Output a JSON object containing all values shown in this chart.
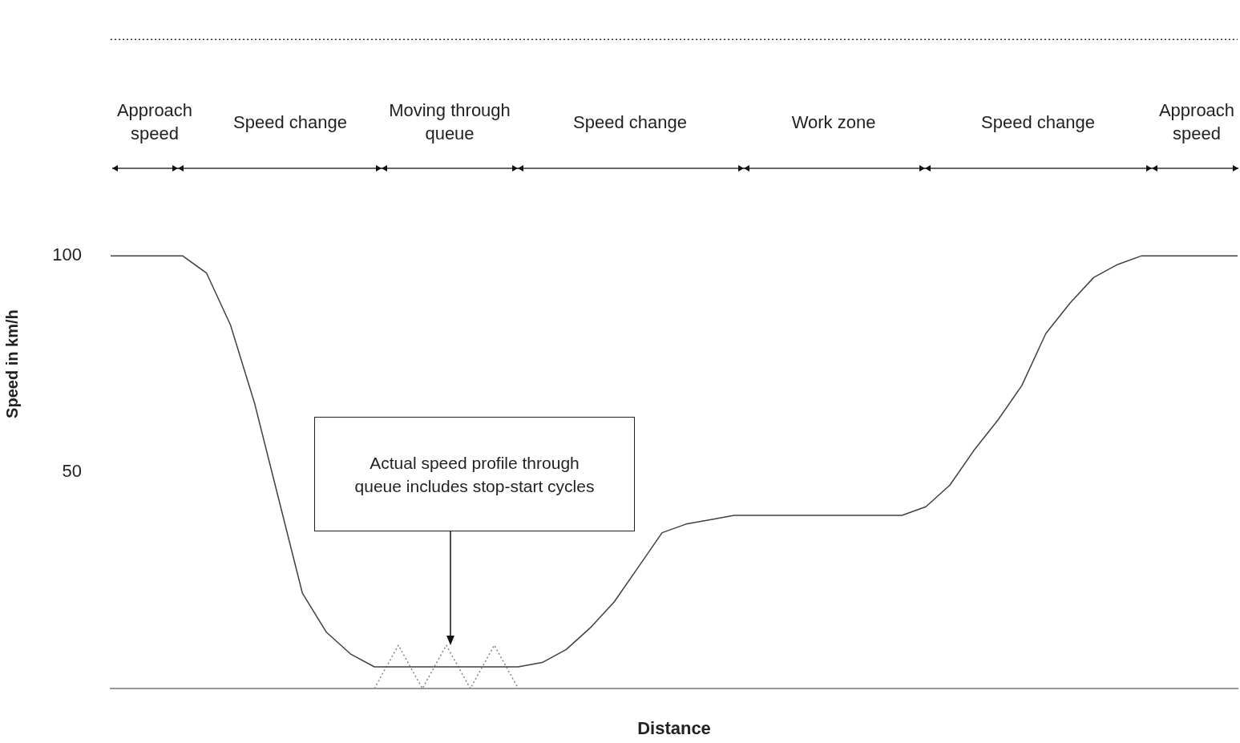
{
  "chart_data": {
    "type": "line",
    "xlabel": "Distance",
    "ylabel": "Speed in km/h",
    "categories": [
      null,
      null,
      null,
      null,
      null,
      null,
      null,
      null,
      null,
      null,
      null,
      null,
      null,
      null,
      null,
      null,
      null,
      null,
      null,
      null,
      null,
      null,
      null,
      null,
      null,
      null,
      null,
      null,
      null,
      null,
      null,
      null,
      null,
      null,
      null,
      null,
      null,
      null,
      null,
      null,
      null,
      null,
      null,
      null,
      null,
      null,
      null,
      null
    ],
    "series": [
      {
        "color": "#404040",
        "line_style": "solid",
        "values": [
          100,
          100,
          100,
          100,
          96,
          84,
          66,
          44,
          22,
          13,
          8,
          5,
          5,
          5,
          5,
          5,
          5,
          5,
          6,
          9,
          14,
          20,
          28,
          36,
          38,
          39,
          40,
          40,
          40,
          40,
          40,
          40,
          40,
          40,
          42,
          47,
          55,
          62,
          70,
          82,
          89,
          95,
          98,
          100,
          100,
          100,
          100,
          100
        ]
      },
      {
        "color": "#808080",
        "line_style": "dotted",
        "values": [
          null,
          null,
          null,
          null,
          null,
          null,
          null,
          null,
          null,
          null,
          null,
          0,
          10,
          0,
          10,
          0,
          10,
          0,
          null,
          null,
          null,
          null,
          null,
          null,
          null,
          null,
          null,
          null,
          null,
          null,
          null,
          null,
          null,
          null,
          null,
          null,
          null,
          null,
          null,
          null,
          null,
          null,
          null,
          null,
          null,
          null,
          null,
          null
        ]
      }
    ],
    "ylim": [
      0,
      150
    ],
    "yticks": [
      50,
      100
    ],
    "grid": false,
    "legend": false,
    "marker": "none",
    "annotations": [
      "Approach speed",
      "Speed change",
      "Moving through queue",
      "Speed change",
      "Work zone",
      "Speed change",
      "Approach speed",
      "Actual speed profile through queue includes stop-start cycles"
    ]
  }
}
